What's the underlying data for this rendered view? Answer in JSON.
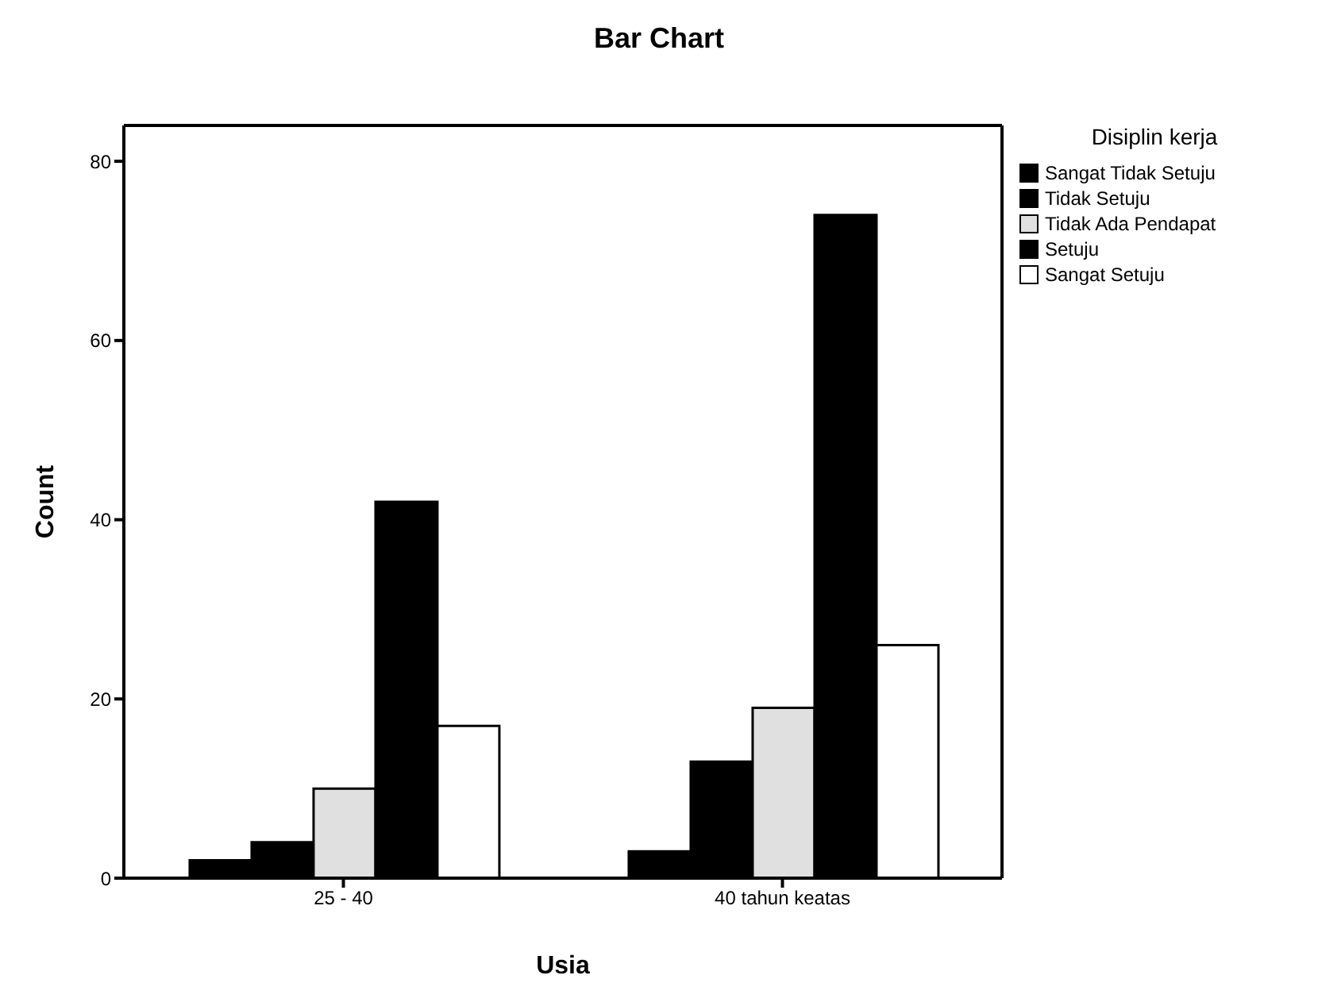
{
  "chart_data": {
    "type": "bar",
    "title": "Bar Chart",
    "xlabel": "Usia",
    "ylabel": "Count",
    "legend_title": "Disiplin kerja",
    "categories": [
      "25 - 40",
      "40 tahun keatas"
    ],
    "series": [
      {
        "name": "Sangat Tidak Setuju",
        "color": "#000000",
        "values": [
          2,
          3
        ]
      },
      {
        "name": "Tidak Setuju",
        "color": "#000000",
        "values": [
          4,
          13
        ]
      },
      {
        "name": "Tidak Ada Pendapat",
        "color": "#e0e0e0",
        "values": [
          10,
          19
        ]
      },
      {
        "name": "Setuju",
        "color": "#000000",
        "values": [
          42,
          74
        ]
      },
      {
        "name": "Sangat Setuju",
        "color": "#ffffff",
        "values": [
          17,
          26
        ]
      }
    ],
    "ylim": [
      0,
      84
    ],
    "yticks": [
      0,
      20,
      40,
      60,
      80
    ],
    "legend": "top right"
  }
}
